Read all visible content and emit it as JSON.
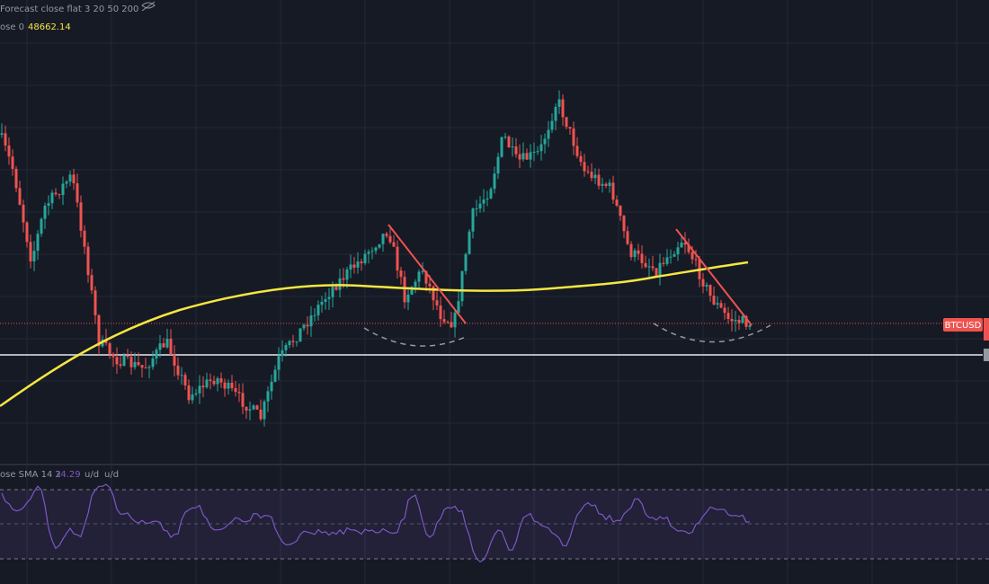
{
  "header": {
    "indicator": "Forecast close flat 3 20 50 200",
    "ma_label": "ose 0",
    "ma_value": "48662.14"
  },
  "price_label": "BTCUSD",
  "oscillator": {
    "label": "ose SMA 14 2",
    "value": "34.29",
    "unit_1": "u/d",
    "unit_2": "u/d"
  }
}
